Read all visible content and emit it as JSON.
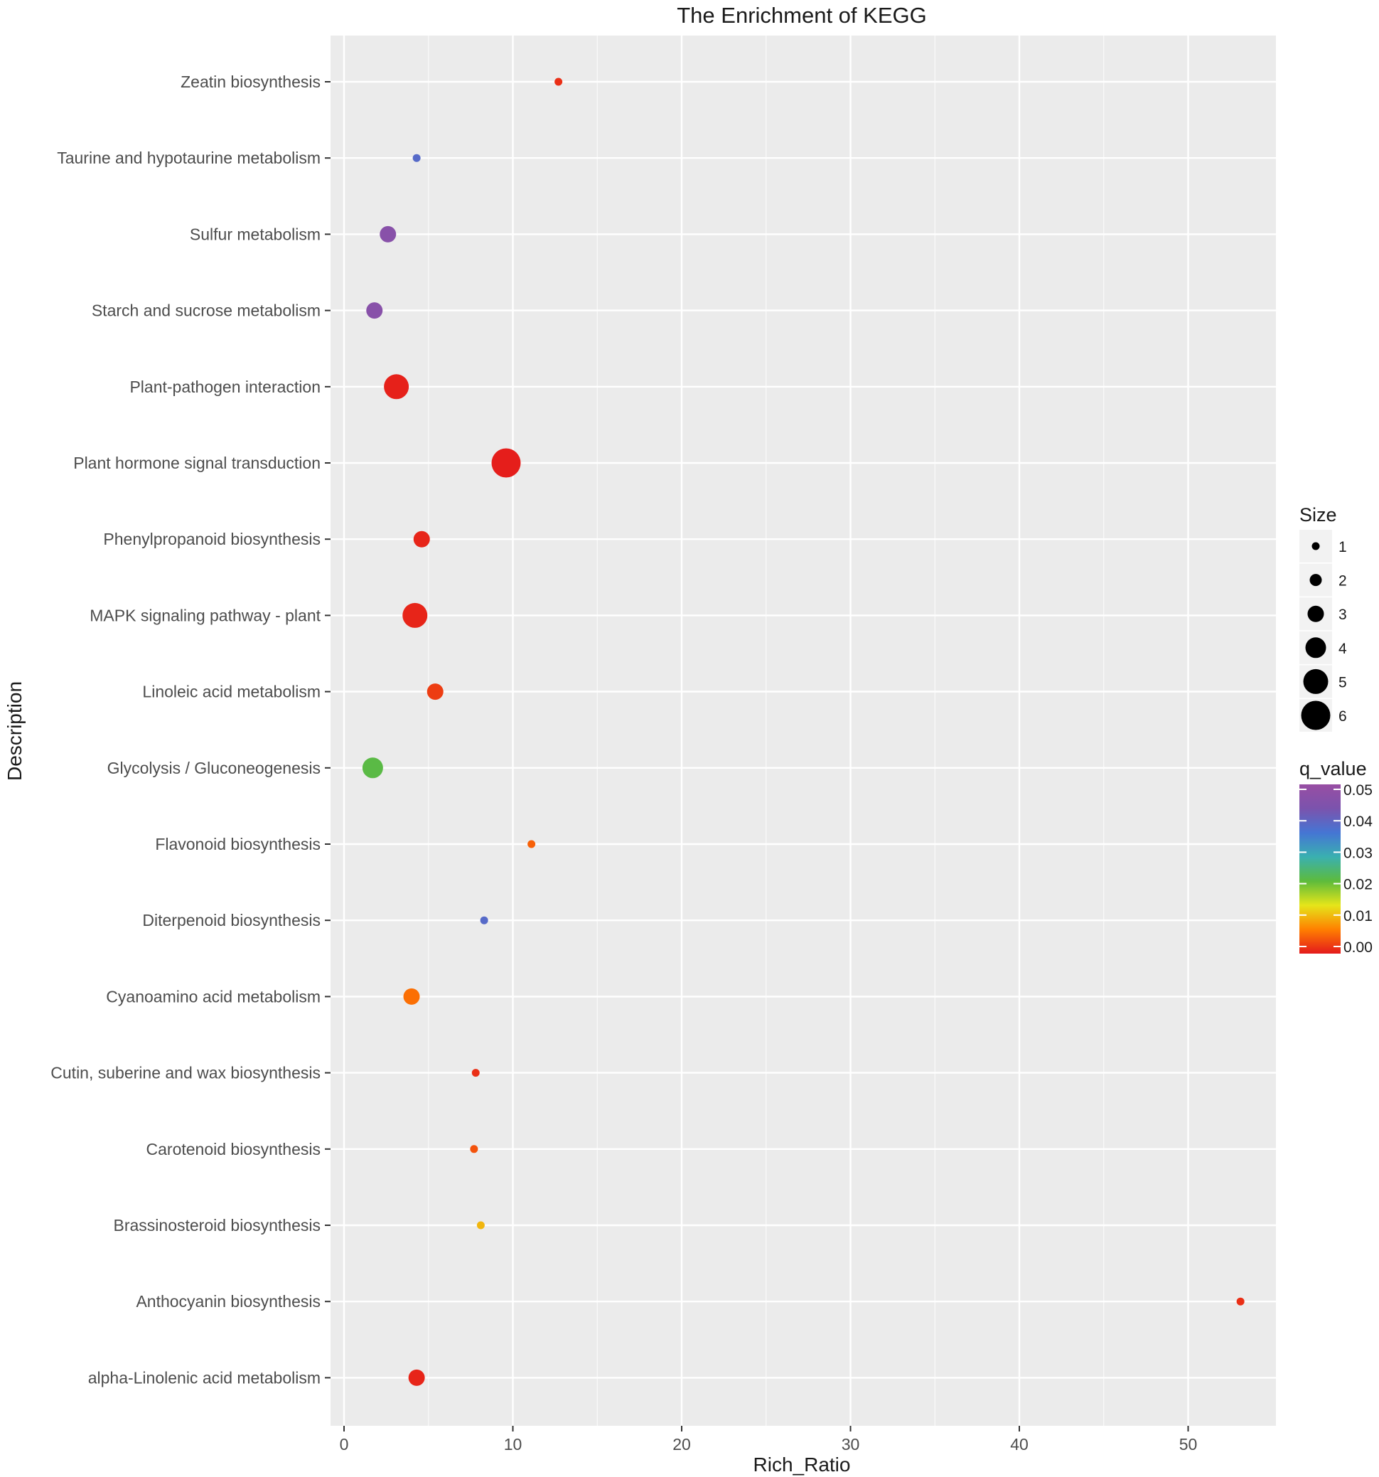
{
  "chart_data": {
    "type": "scatter",
    "title": "The Enrichment of KEGG",
    "xlabel": "Rich_Ratio",
    "ylabel": "Description",
    "xlim": [
      -0.8,
      55.2
    ],
    "xticks": [
      0,
      10,
      20,
      30,
      40,
      50
    ],
    "grid": true,
    "categories": [
      "Zeatin biosynthesis",
      "Taurine and hypotaurine metabolism",
      "Sulfur metabolism",
      "Starch and sucrose metabolism",
      "Plant-pathogen interaction",
      "Plant hormone signal transduction",
      "Phenylpropanoid biosynthesis",
      "MAPK signaling pathway - plant",
      "Linoleic acid metabolism",
      "Glycolysis / Gluconeogenesis",
      "Flavonoid biosynthesis",
      "Diterpenoid biosynthesis",
      "Cyanoamino acid metabolism",
      "Cutin, suberine and wax biosynthesis",
      "Carotenoid biosynthesis",
      "Brassinosteroid biosynthesis",
      "Anthocyanin biosynthesis",
      "alpha-Linolenic acid metabolism"
    ],
    "points": [
      {
        "description": "Zeatin biosynthesis",
        "rich_ratio": 12.7,
        "size": 1,
        "q_value": 0.0015
      },
      {
        "description": "Taurine and hypotaurine metabolism",
        "rich_ratio": 4.3,
        "size": 1,
        "q_value": 0.038
      },
      {
        "description": "Sulfur metabolism",
        "rich_ratio": 2.6,
        "size": 3,
        "q_value": 0.046
      },
      {
        "description": "Starch and sucrose metabolism",
        "rich_ratio": 1.8,
        "size": 3,
        "q_value": 0.046
      },
      {
        "description": "Plant-pathogen interaction",
        "rich_ratio": 3.1,
        "size": 5,
        "q_value": 0.0005
      },
      {
        "description": "Plant hormone signal transduction",
        "rich_ratio": 9.6,
        "size": 6,
        "q_value": 0.0003
      },
      {
        "description": "Phenylpropanoid biosynthesis",
        "rich_ratio": 4.6,
        "size": 3,
        "q_value": 0.0008
      },
      {
        "description": "MAPK signaling pathway - plant",
        "rich_ratio": 4.2,
        "size": 5,
        "q_value": 0.0008
      },
      {
        "description": "Linoleic acid metabolism",
        "rich_ratio": 5.4,
        "size": 3,
        "q_value": 0.0025
      },
      {
        "description": "Glycolysis / Gluconeogenesis",
        "rich_ratio": 1.7,
        "size": 4,
        "q_value": 0.022
      },
      {
        "description": "Flavonoid biosynthesis",
        "rich_ratio": 11.1,
        "size": 1,
        "q_value": 0.005
      },
      {
        "description": "Diterpenoid biosynthesis",
        "rich_ratio": 8.3,
        "size": 1,
        "q_value": 0.038
      },
      {
        "description": "Cyanoamino acid metabolism",
        "rich_ratio": 4.0,
        "size": 3,
        "q_value": 0.006
      },
      {
        "description": "Cutin, suberine and wax biosynthesis",
        "rich_ratio": 7.8,
        "size": 1,
        "q_value": 0.0015
      },
      {
        "description": "Carotenoid biosynthesis",
        "rich_ratio": 7.7,
        "size": 1,
        "q_value": 0.004
      },
      {
        "description": "Brassinosteroid biosynthesis",
        "rich_ratio": 8.1,
        "size": 1,
        "q_value": 0.011
      },
      {
        "description": "Anthocyanin biosynthesis",
        "rich_ratio": 53.1,
        "size": 1,
        "q_value": 0.0015
      },
      {
        "description": "alpha-Linolenic acid metabolism",
        "rich_ratio": 4.3,
        "size": 3,
        "q_value": 0.0008
      }
    ],
    "legend": {
      "placement": "right",
      "size": {
        "title": "Size",
        "values": [
          1,
          2,
          3,
          4,
          5,
          6
        ],
        "labels": [
          "1",
          "2",
          "3",
          "4",
          "5",
          "6"
        ]
      },
      "color": {
        "title": "q_value",
        "range": [
          0.0,
          0.05
        ],
        "ticks": [
          0.0,
          0.01,
          0.02,
          0.03,
          0.04,
          0.05
        ],
        "tick_labels": [
          "0.00",
          "0.01",
          "0.02",
          "0.03",
          "0.04",
          "0.05"
        ],
        "gradient": [
          "#e41a1c",
          "#ff7f00",
          "#e5e51a",
          "#5dbb3c",
          "#3ab0b0",
          "#4575d4",
          "#7b53ad",
          "#984ea3"
        ]
      }
    },
    "colors": {
      "panel_background": "#ebebeb",
      "grid_major": "#ffffff"
    }
  }
}
